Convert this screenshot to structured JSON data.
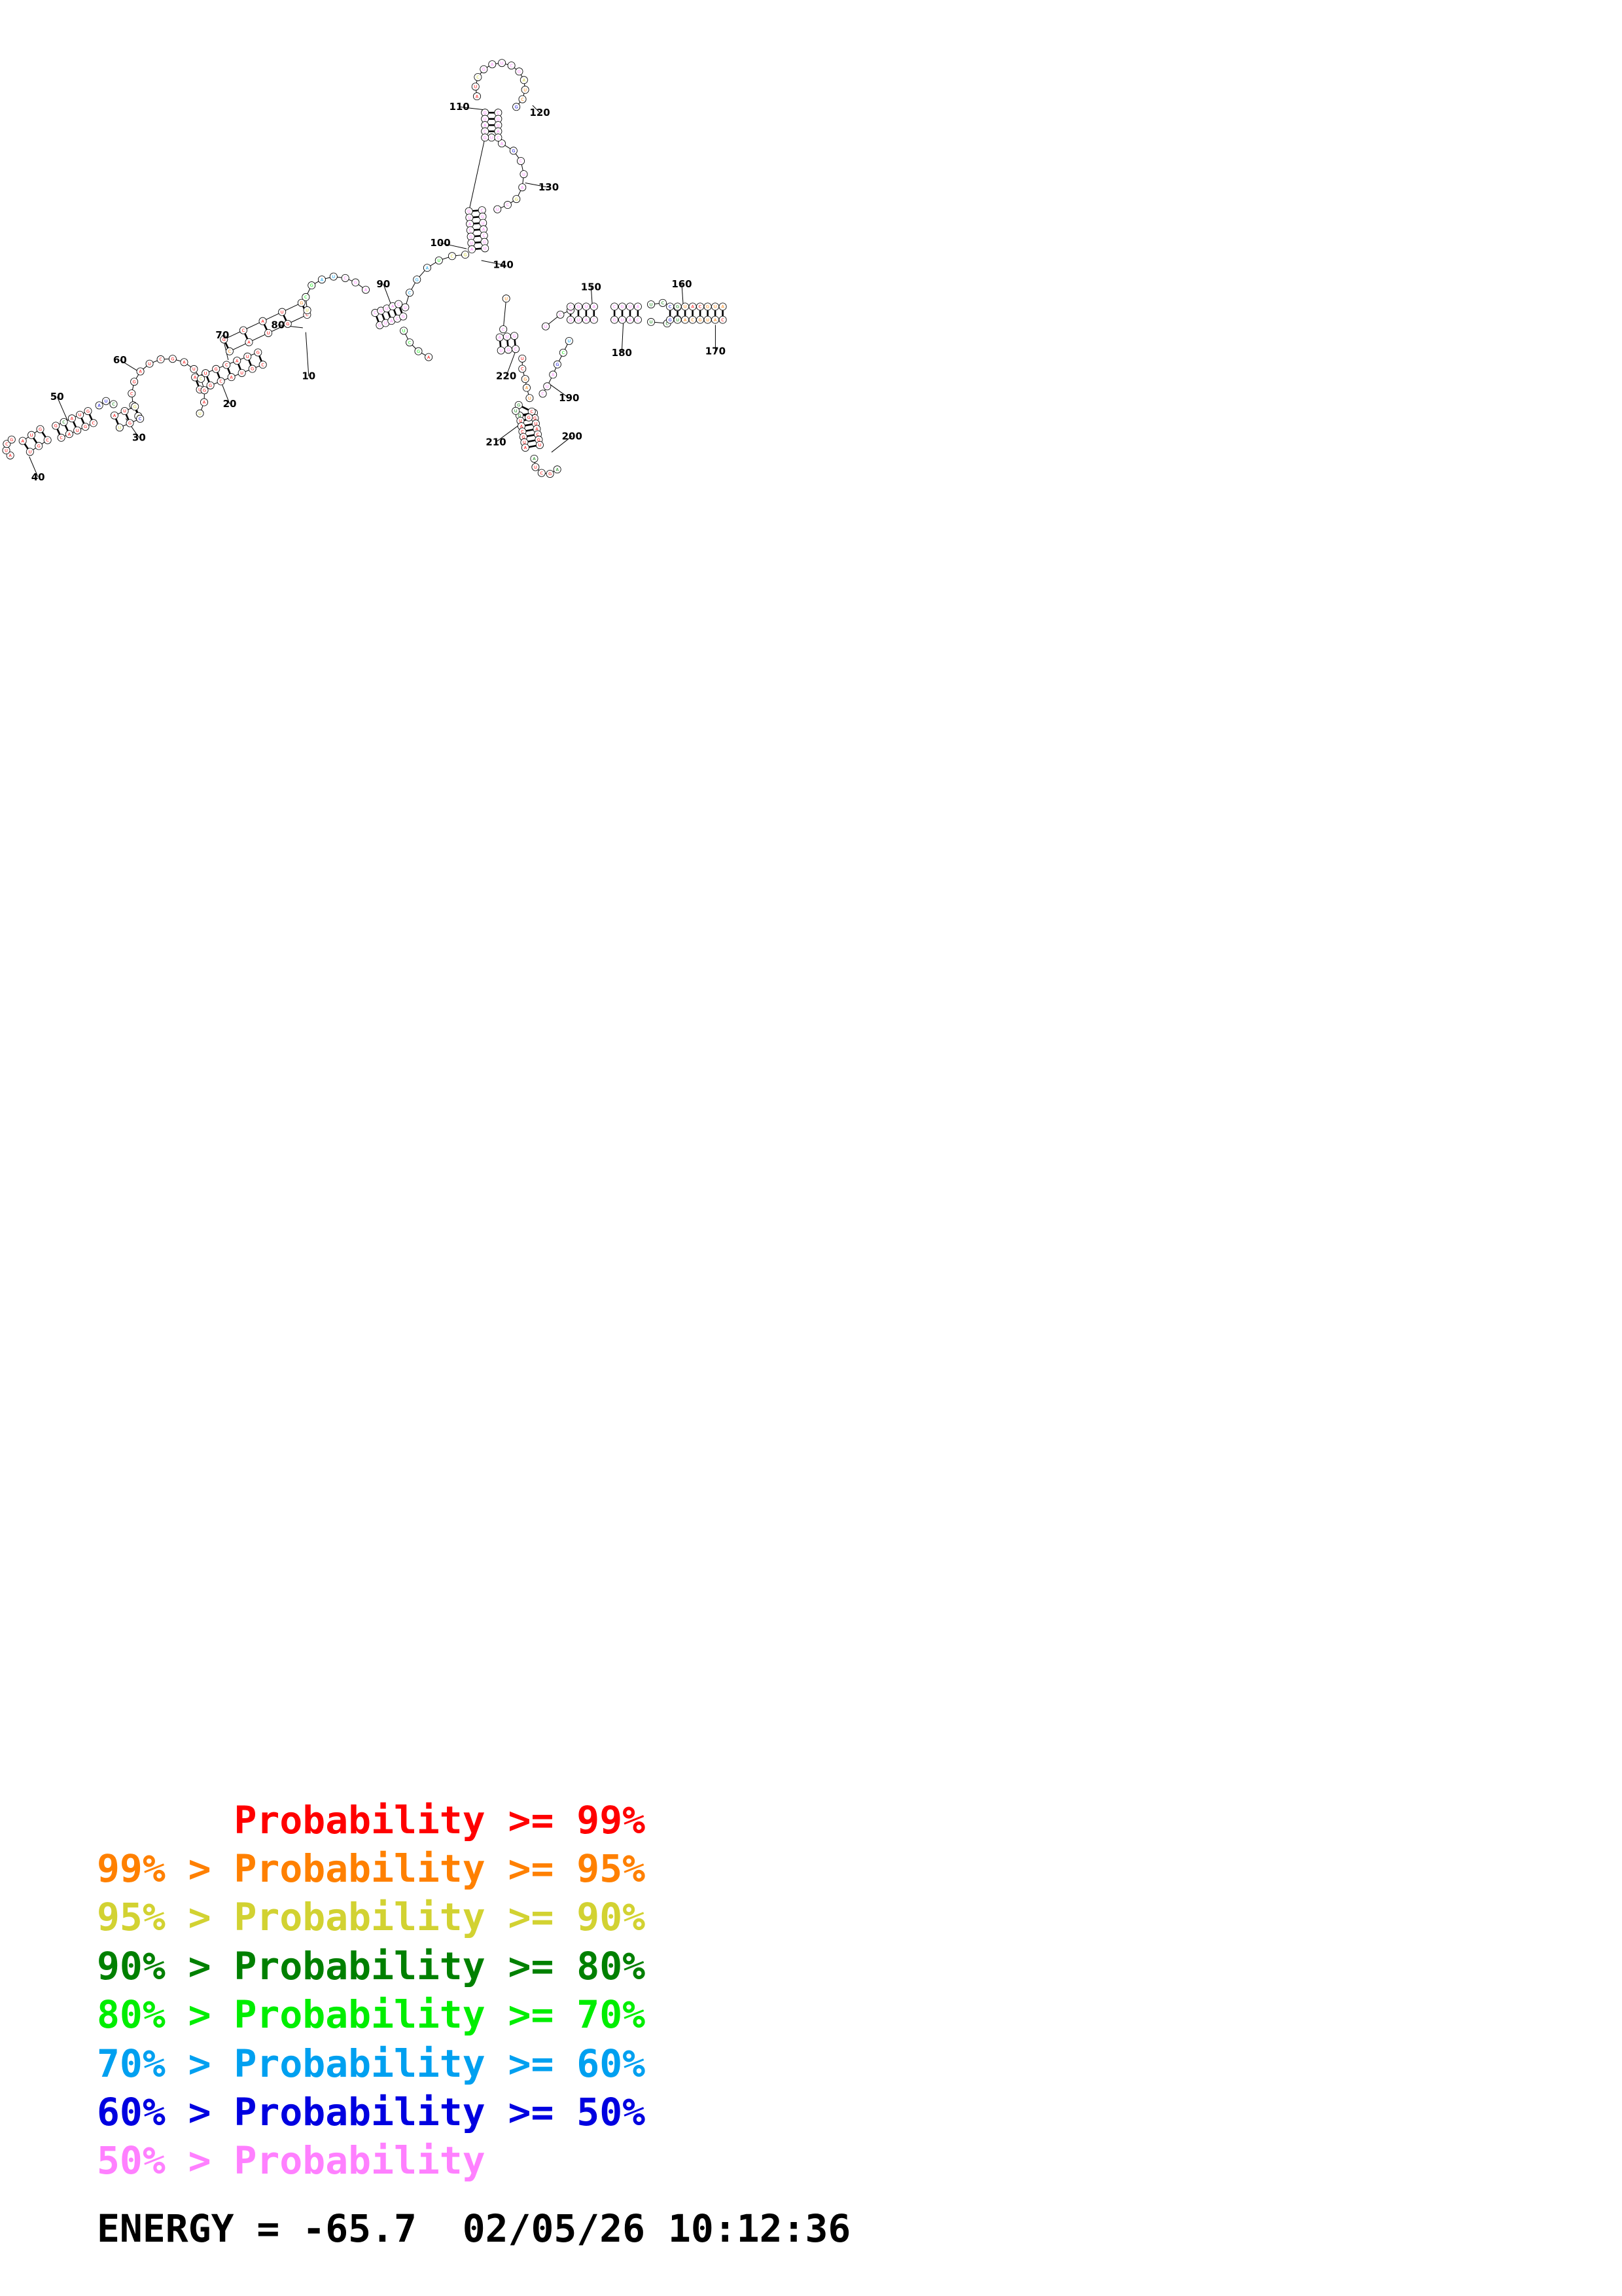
{
  "legend": [
    {
      "text": "      Probability >= 99%",
      "color": "#ff0000"
    },
    {
      "text": "99% > Probability >= 95%",
      "color": "#ff8000"
    },
    {
      "text": "95% > Probability >= 90%",
      "color": "#d2d232"
    },
    {
      "text": "90% > Probability >= 80%",
      "color": "#008000"
    },
    {
      "text": "80% > Probability >= 70%",
      "color": "#00ee00"
    },
    {
      "text": "70% > Probability >= 60%",
      "color": "#00a0f0"
    },
    {
      "text": "60% > Probability >= 50%",
      "color": "#0000e0"
    },
    {
      "text": "50% > Probability",
      "color": "#ff80ff"
    }
  ],
  "footer": {
    "energy": "ENERGY = -65.7  02/05/26 10:12:36"
  },
  "structure": {
    "index_labels": [
      "10",
      "20",
      "30",
      "40",
      "50",
      "60",
      "70",
      "80",
      "90",
      "100",
      "110",
      "120",
      "130",
      "140",
      "150",
      "160",
      "170",
      "180",
      "190",
      "200",
      "210",
      "220"
    ]
  }
}
